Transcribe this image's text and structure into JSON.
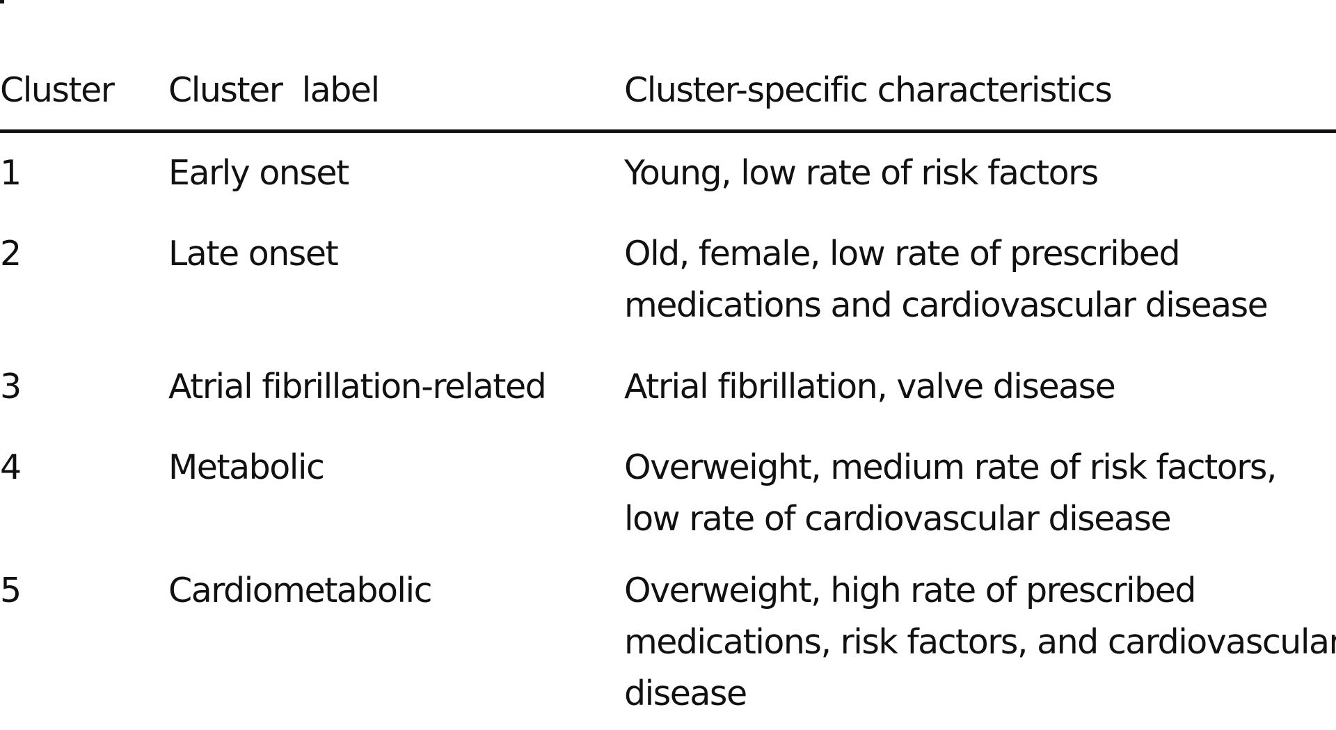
{
  "table": {
    "headers": {
      "cluster": "Cluster",
      "label": "Cluster  label",
      "characteristics": "Cluster-specific characteristics"
    },
    "rows": [
      {
        "cluster": "1",
        "label": "Early onset",
        "characteristics": [
          "Young, low rate of risk factors"
        ]
      },
      {
        "cluster": "2",
        "label": "Late onset",
        "characteristics": [
          "Old, female, low rate of prescribed",
          "medications and cardiovascular disease"
        ]
      },
      {
        "cluster": "3",
        "label": "Atrial fibrillation-related",
        "characteristics": [
          "Atrial fibrillation, valve disease"
        ]
      },
      {
        "cluster": "4",
        "label": "Metabolic",
        "characteristics": [
          "Overweight, medium rate of risk factors,",
          "low rate of cardiovascular disease"
        ]
      },
      {
        "cluster": "5",
        "label": "Cardiometabolic",
        "characteristics": [
          "Overweight, high rate of prescribed",
          "medications, risk factors, and cardiovascular",
          "disease"
        ]
      }
    ]
  }
}
